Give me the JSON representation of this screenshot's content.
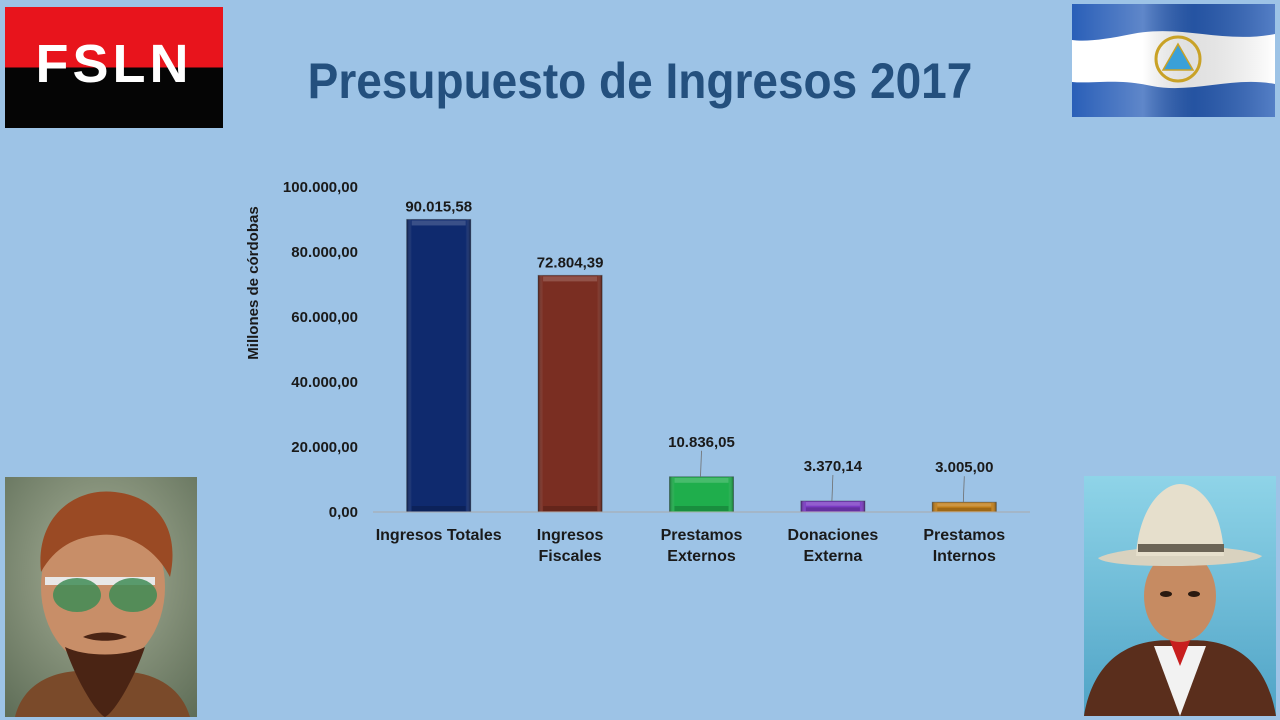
{
  "slide": {
    "title": "Presupuesto de Ingresos 2017",
    "background_color": "#9dc3e6",
    "title_color": "#24507e"
  },
  "logo": {
    "text": "FSLN",
    "colors": [
      "#e8141c",
      "#050505"
    ]
  },
  "images": {
    "flag": "nicaragua-flag",
    "portrait_left": "portrait-man-with-glasses-and-goatee",
    "portrait_right": "portrait-man-with-hat-and-red-scarf"
  },
  "chart_data": {
    "type": "bar",
    "title": "",
    "xlabel": "",
    "ylabel": "Millones de córdobas",
    "ylim": [
      0,
      100000
    ],
    "yticks": [
      "0,00",
      "20.000,00",
      "40.000,00",
      "60.000,00",
      "80.000,00",
      "100.000,00"
    ],
    "grid": false,
    "categories": [
      [
        "Ingresos Totales"
      ],
      [
        "Ingresos",
        "Fiscales"
      ],
      [
        "Prestamos",
        "Externos"
      ],
      [
        "Donaciones",
        "Externa"
      ],
      [
        "Prestamos",
        "Internos"
      ]
    ],
    "values": [
      90015.58,
      72804.39,
      10836.05,
      3370.14,
      3005.0
    ],
    "data_labels": [
      "90.015,58",
      "72.804,39",
      "10.836,05",
      "3.370,14",
      "3.005,00"
    ],
    "bar_colors": [
      "#0f2a6e",
      "#7a2e22",
      "#1fae4c",
      "#7b3bc4",
      "#c27f1a"
    ]
  }
}
